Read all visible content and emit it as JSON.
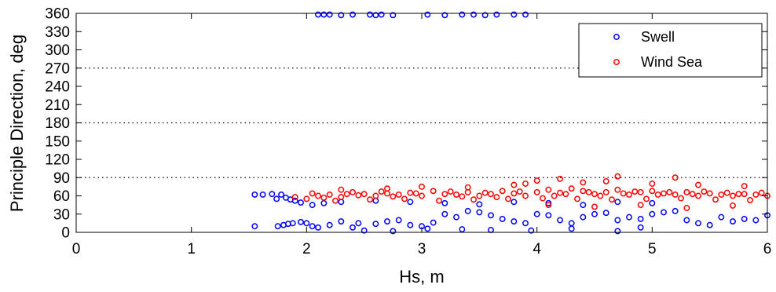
{
  "chart_data": {
    "type": "scatter",
    "title": "",
    "xlabel": "Hs, m",
    "ylabel": "Principle Direction, deg",
    "xlim": [
      0,
      6
    ],
    "ylim": [
      0,
      360
    ],
    "xticks": [
      0,
      1,
      2,
      3,
      4,
      5,
      6
    ],
    "yticks": [
      0,
      30,
      60,
      90,
      120,
      150,
      180,
      210,
      240,
      270,
      300,
      330,
      360
    ],
    "reference_lines_y": [
      90,
      180,
      270
    ],
    "legend_placement": "top-right",
    "grid": false,
    "series": [
      {
        "name": "Swell",
        "color": "#0000ff",
        "marker": "open-circle",
        "points": [
          [
            1.55,
            62
          ],
          [
            1.62,
            62
          ],
          [
            1.7,
            63
          ],
          [
            1.74,
            55
          ],
          [
            1.78,
            62
          ],
          [
            1.82,
            57
          ],
          [
            1.86,
            54
          ],
          [
            1.9,
            52
          ],
          [
            1.95,
            49
          ],
          [
            2.05,
            45
          ],
          [
            2.15,
            48
          ],
          [
            1.75,
            10
          ],
          [
            1.8,
            12
          ],
          [
            1.84,
            14
          ],
          [
            1.88,
            15
          ],
          [
            1.95,
            17
          ],
          [
            2.0,
            15
          ],
          [
            2.05,
            10
          ],
          [
            2.1,
            8
          ],
          [
            2.2,
            12
          ],
          [
            2.3,
            18
          ],
          [
            2.4,
            8
          ],
          [
            2.5,
            3
          ],
          [
            2.6,
            14
          ],
          [
            2.7,
            18
          ],
          [
            2.8,
            20
          ],
          [
            2.9,
            12
          ],
          [
            3.0,
            10
          ],
          [
            3.1,
            16
          ],
          [
            3.2,
            30
          ],
          [
            3.3,
            25
          ],
          [
            3.4,
            35
          ],
          [
            3.5,
            33
          ],
          [
            3.6,
            28
          ],
          [
            3.7,
            22
          ],
          [
            3.8,
            18
          ],
          [
            3.9,
            15
          ],
          [
            4.0,
            30
          ],
          [
            4.1,
            28
          ],
          [
            4.2,
            20
          ],
          [
            4.3,
            15
          ],
          [
            4.4,
            25
          ],
          [
            4.5,
            30
          ],
          [
            4.6,
            32
          ],
          [
            4.7,
            20
          ],
          [
            4.8,
            25
          ],
          [
            4.9,
            22
          ],
          [
            5.0,
            30
          ],
          [
            5.1,
            33
          ],
          [
            5.2,
            35
          ],
          [
            5.3,
            20
          ],
          [
            5.4,
            15
          ],
          [
            5.5,
            12
          ],
          [
            5.6,
            25
          ],
          [
            5.7,
            18
          ],
          [
            5.8,
            22
          ],
          [
            5.9,
            20
          ],
          [
            6.0,
            28
          ],
          [
            2.3,
            50
          ],
          [
            2.6,
            52
          ],
          [
            2.9,
            50
          ],
          [
            3.2,
            48
          ],
          [
            3.5,
            46
          ],
          [
            3.8,
            50
          ],
          [
            4.1,
            48
          ],
          [
            4.4,
            45
          ],
          [
            4.7,
            50
          ],
          [
            5.0,
            48
          ],
          [
            3.6,
            4
          ],
          [
            3.95,
            3
          ],
          [
            4.3,
            6
          ],
          [
            4.7,
            2
          ],
          [
            2.75,
            2
          ],
          [
            3.05,
            6
          ],
          [
            2.45,
            15
          ],
          [
            3.35,
            5
          ],
          [
            1.55,
            10
          ],
          [
            4.9,
            8
          ],
          [
            2.1,
            358
          ],
          [
            2.15,
            358
          ],
          [
            2.2,
            358
          ],
          [
            2.3,
            357
          ],
          [
            2.4,
            358
          ],
          [
            2.55,
            358
          ],
          [
            2.6,
            357
          ],
          [
            2.65,
            358
          ],
          [
            2.75,
            357
          ],
          [
            3.05,
            358
          ],
          [
            3.2,
            357
          ],
          [
            3.35,
            358
          ],
          [
            3.45,
            358
          ],
          [
            3.55,
            357
          ],
          [
            3.65,
            358
          ],
          [
            3.8,
            358
          ],
          [
            3.9,
            358
          ]
        ]
      },
      {
        "name": "Wind Sea",
        "color": "#ff0000",
        "marker": "open-circle",
        "points": [
          [
            1.9,
            58
          ],
          [
            2.0,
            55
          ],
          [
            2.1,
            60
          ],
          [
            2.2,
            62
          ],
          [
            2.3,
            58
          ],
          [
            2.4,
            66
          ],
          [
            2.5,
            63
          ],
          [
            2.6,
            60
          ],
          [
            2.7,
            64
          ],
          [
            2.8,
            62
          ],
          [
            2.9,
            65
          ],
          [
            3.0,
            60
          ],
          [
            3.1,
            68
          ],
          [
            3.2,
            63
          ],
          [
            3.3,
            62
          ],
          [
            3.4,
            66
          ],
          [
            3.5,
            60
          ],
          [
            3.6,
            63
          ],
          [
            3.7,
            68
          ],
          [
            3.8,
            64
          ],
          [
            3.9,
            60
          ],
          [
            4.0,
            66
          ],
          [
            4.1,
            70
          ],
          [
            4.2,
            65
          ],
          [
            4.3,
            72
          ],
          [
            4.4,
            68
          ],
          [
            4.5,
            63
          ],
          [
            4.6,
            66
          ],
          [
            4.7,
            70
          ],
          [
            4.8,
            62
          ],
          [
            4.9,
            66
          ],
          [
            5.0,
            68
          ],
          [
            5.1,
            64
          ],
          [
            5.2,
            62
          ],
          [
            5.3,
            66
          ],
          [
            5.4,
            60
          ],
          [
            5.5,
            64
          ],
          [
            5.6,
            62
          ],
          [
            5.7,
            60
          ],
          [
            5.8,
            63
          ],
          [
            5.9,
            62
          ],
          [
            6.0,
            60
          ],
          [
            2.25,
            52
          ],
          [
            2.55,
            54
          ],
          [
            2.85,
            55
          ],
          [
            3.15,
            52
          ],
          [
            3.45,
            54
          ],
          [
            3.75,
            55
          ],
          [
            4.05,
            56
          ],
          [
            4.35,
            55
          ],
          [
            4.65,
            54
          ],
          [
            4.95,
            55
          ],
          [
            5.25,
            56
          ],
          [
            5.55,
            54
          ],
          [
            5.85,
            53
          ],
          [
            4.0,
            85
          ],
          [
            4.2,
            88
          ],
          [
            4.4,
            82
          ],
          [
            4.7,
            92
          ],
          [
            5.2,
            90
          ],
          [
            3.9,
            80
          ],
          [
            4.6,
            84
          ],
          [
            5.0,
            80
          ],
          [
            5.4,
            78
          ],
          [
            5.8,
            76
          ],
          [
            4.1,
            45
          ],
          [
            4.5,
            42
          ],
          [
            4.9,
            45
          ],
          [
            5.3,
            40
          ],
          [
            5.7,
            44
          ],
          [
            2.3,
            70
          ],
          [
            2.7,
            72
          ],
          [
            3.0,
            75
          ],
          [
            3.4,
            74
          ],
          [
            3.8,
            78
          ],
          [
            2.05,
            64
          ],
          [
            2.15,
            57
          ],
          [
            2.35,
            63
          ],
          [
            2.45,
            61
          ],
          [
            2.65,
            67
          ],
          [
            2.75,
            59
          ],
          [
            2.95,
            64
          ],
          [
            3.25,
            67
          ],
          [
            3.35,
            59
          ],
          [
            3.55,
            65
          ],
          [
            3.65,
            58
          ],
          [
            3.85,
            67
          ],
          [
            4.15,
            60
          ],
          [
            4.25,
            63
          ],
          [
            4.45,
            66
          ],
          [
            4.55,
            60
          ],
          [
            4.75,
            64
          ],
          [
            4.85,
            67
          ],
          [
            5.05,
            62
          ],
          [
            5.15,
            66
          ],
          [
            5.35,
            63
          ],
          [
            5.45,
            67
          ],
          [
            5.65,
            65
          ],
          [
            5.75,
            63
          ],
          [
            5.95,
            65
          ]
        ]
      }
    ]
  }
}
